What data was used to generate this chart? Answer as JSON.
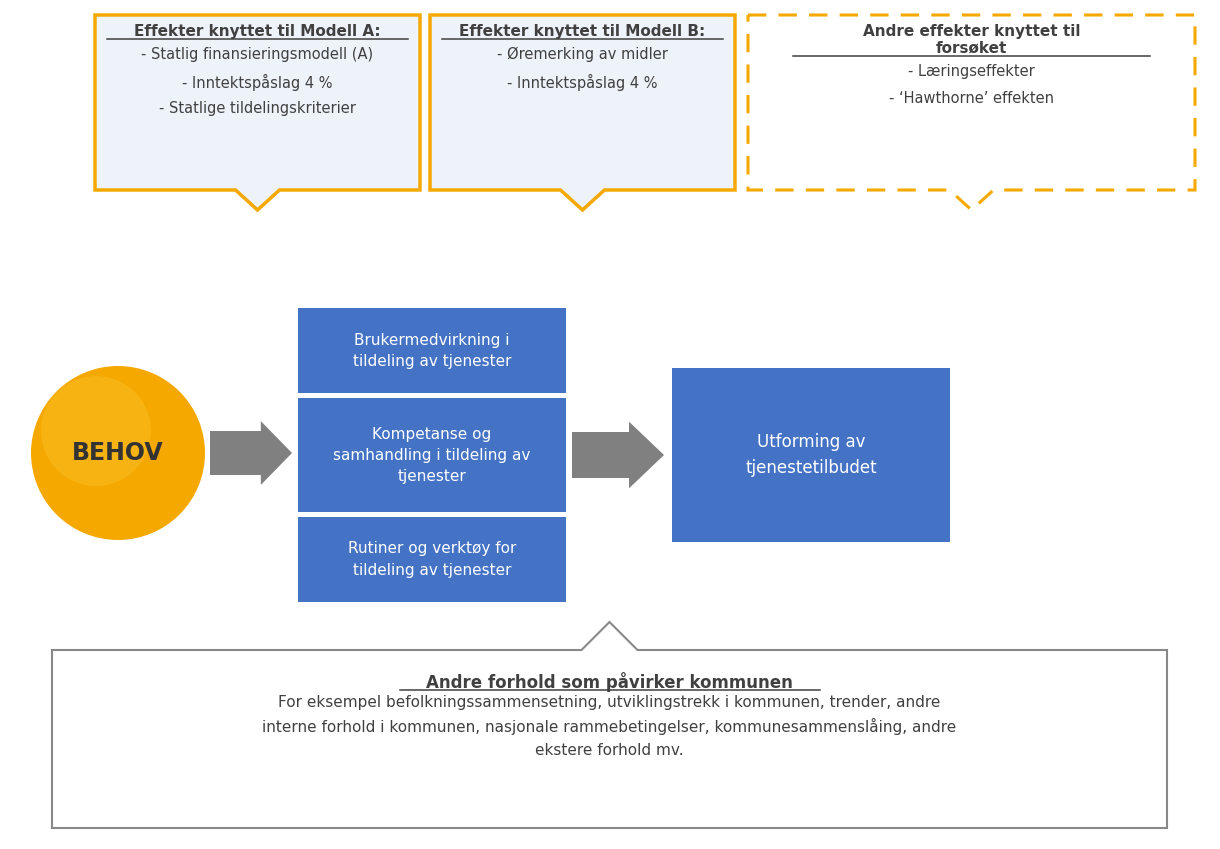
{
  "bg_color": "#ffffff",
  "orange_solid": "#F5A800",
  "blue_box": "#4472C4",
  "text_dark": "#404040",
  "text_white": "#ffffff",
  "box_a_title": "Effekter knyttet til Modell A:",
  "box_a_lines": [
    "- Statlig finansieringsmodell (A)",
    "- Inntektspåslag 4 %",
    "- Statlige tildelingskriterier"
  ],
  "box_b_title": "Effekter knyttet til Modell B:",
  "box_b_lines": [
    "- Øremerking av midler",
    "- Inntektspåslag 4 %"
  ],
  "box_c_line1": "Andre effekter knyttet til",
  "box_c_line2": "forsøket",
  "box_c_lines": [
    "- Læringseffekter",
    "- ‘Hawthorne’ effekten"
  ],
  "behov_text": "BEHOV",
  "blue_box1": "Brukermedvirkning i\ntildeling av tjenester",
  "blue_box2": "Kompetanse og\nsamhandling i tildeling av\ntjenester",
  "blue_box3": "Rutiner og verktøy for\ntildeling av tjenester",
  "blue_box_right": "Utforming av\ntjenestetilbudet",
  "bottom_title": "Andre forhold som påvirker kommunen",
  "bottom_text": "For eksempel befolkningssammensetning, utviklingstrekk i kommunen, trender, andre\ninterne forhold i kommunen, nasjonale rammebetingelser, kommunesammenslåing, andre\nekstere forhold mv."
}
